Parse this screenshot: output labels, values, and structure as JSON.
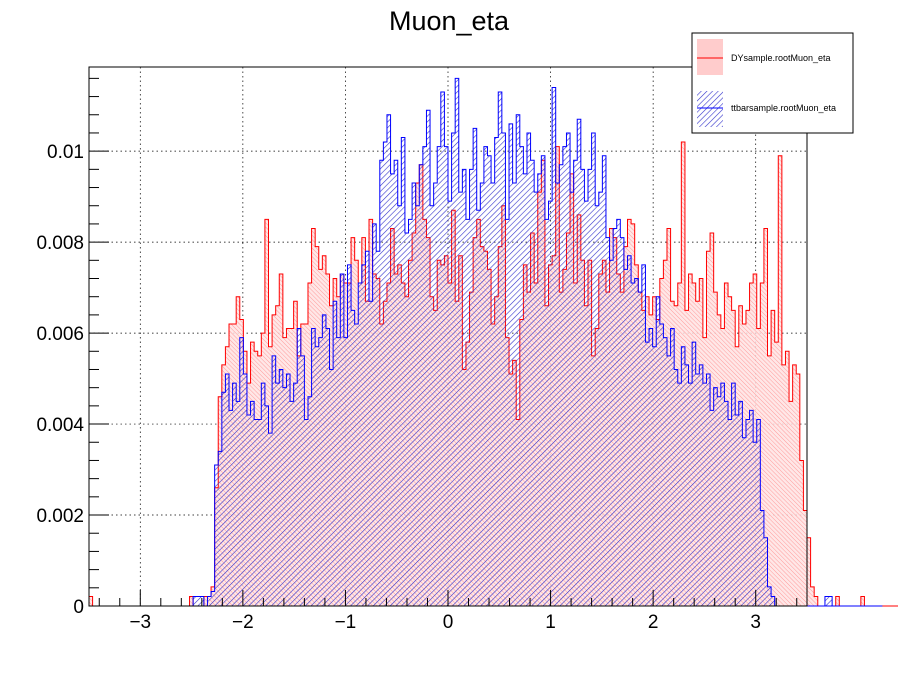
{
  "chart_data": {
    "type": "histogram",
    "title": "Muon_eta",
    "xlabel": "",
    "ylabel": "",
    "xlim": [
      -3.5,
      3.5
    ],
    "ylim": [
      0,
      0.01185
    ],
    "x_ticks": [
      -3,
      -2,
      -1,
      0,
      1,
      2,
      3
    ],
    "x_tick_labels": [
      "−3",
      "−2",
      "−1",
      "0",
      "1",
      "2",
      "3"
    ],
    "y_ticks": [
      0,
      0.002,
      0.004,
      0.006,
      0.008,
      0.01
    ],
    "y_tick_labels": [
      "0",
      "0.002",
      "0.004",
      "0.006",
      "0.008",
      "0.01"
    ],
    "grid": true,
    "legend_position": "top-right",
    "bin_width": 0.035,
    "bin_start": -3.5,
    "series": [
      {
        "name": "DYsample.rootMuon_eta",
        "color": "#ff0000",
        "fill": "#ffcccc",
        "values": [
          0.00021,
          0,
          0,
          0,
          0,
          0,
          0,
          0,
          0,
          0,
          0,
          0,
          0,
          0,
          0,
          0,
          0,
          0,
          0,
          0,
          0,
          0,
          0,
          0,
          0,
          0,
          0,
          0,
          0.00021,
          0,
          0,
          0,
          0.00021,
          0.00021,
          0.00042,
          0.0026,
          0.0046,
          0.0053,
          0.0057,
          0.0062,
          0.0062,
          0.0068,
          0.0063,
          0.0056,
          0.0049,
          0.0058,
          0.0056,
          0.0055,
          0.006,
          0.0085,
          0.0057,
          0.0064,
          0.0066,
          0.0073,
          0.0059,
          0.0061,
          0.0061,
          0.0067,
          0.0055,
          0.0062,
          0.0062,
          0.0071,
          0.0083,
          0.0079,
          0.0074,
          0.0077,
          0.0073,
          0.0066,
          0.0072,
          0.0068,
          0.0073,
          0.0071,
          0.0071,
          0.0081,
          0.0076,
          0.0071,
          0.0081,
          0.0067,
          0.0085,
          0.0073,
          0.0072,
          0.0062,
          0.0067,
          0.0071,
          0.0083,
          0.0073,
          0.0075,
          0.0071,
          0.0068,
          0.0076,
          0.0082,
          0.0093,
          0.0097,
          0.0085,
          0.0081,
          0.0068,
          0.0065,
          0.0076,
          0.0075,
          0.0077,
          0.0071,
          0.0087,
          0.0067,
          0.0077,
          0.0052,
          0.0058,
          0.0069,
          0.0081,
          0.0085,
          0.0079,
          0.0078,
          0.0074,
          0.0062,
          0.0068,
          0.0079,
          0.0088,
          0.0059,
          0.0051,
          0.0054,
          0.0041,
          0.0063,
          0.0075,
          0.0069,
          0.0082,
          0.0071,
          0.0091,
          0.0098,
          0.0066,
          0.0075,
          0.0077,
          0.0101,
          0.0069,
          0.0074,
          0.0082,
          0.0095,
          0.0071,
          0.0086,
          0.0076,
          0.0066,
          0.0076,
          0.0055,
          0.0061,
          0.0073,
          0.0076,
          0.0069,
          0.0083,
          0.0081,
          0.0073,
          0.0069,
          0.0079,
          0.0085,
          0.0084,
          0.0075,
          0.0069,
          0.0065,
          0.0068,
          0.0064,
          0.0068,
          0.0063,
          0.0072,
          0.0076,
          0.0083,
          0.0067,
          0.0066,
          0.0071,
          0.0102,
          0.0065,
          0.0073,
          0.0071,
          0.0067,
          0.0072,
          0.0059,
          0.0078,
          0.0082,
          0.0069,
          0.0064,
          0.0061,
          0.0071,
          0.0068,
          0.0065,
          0.0057,
          0.0066,
          0.0062,
          0.0065,
          0.0071,
          0.0073,
          0.0061,
          0.0071,
          0.0083,
          0.0055,
          0.0065,
          0.0058,
          0.0099,
          0.0053,
          0.0056,
          0.0045,
          0.0053,
          0.0051,
          0.0032,
          0.0021,
          0.0015,
          0.00042,
          0.00021,
          0,
          0,
          0,
          0,
          0,
          0.00021,
          0,
          0,
          0,
          0,
          0,
          0,
          0.00021,
          0,
          0,
          0,
          0,
          0,
          0,
          0,
          0,
          0,
          0,
          0,
          0.00021,
          0,
          0,
          0,
          0,
          0
        ]
      },
      {
        "name": "ttbarsample.rootMuon_eta",
        "color": "#0000ff",
        "fill": "#6666dd",
        "values": [
          0,
          0,
          0,
          0,
          0,
          0,
          0,
          0,
          0,
          0,
          0,
          0,
          0,
          0,
          0,
          0,
          0,
          0,
          0,
          0,
          0,
          0,
          0,
          0,
          0,
          0,
          0,
          0,
          0,
          0.00021,
          0.00021,
          0.00021,
          0,
          0.00021,
          0.00032,
          0.0031,
          0.0034,
          0.0047,
          0.0051,
          0.0043,
          0.0049,
          0.0045,
          0.0059,
          0.0051,
          0.0042,
          0.0045,
          0.0041,
          0.0041,
          0.0049,
          0.0044,
          0.0038,
          0.0055,
          0.0049,
          0.0052,
          0.0048,
          0.0051,
          0.0045,
          0.0049,
          0.0061,
          0.0055,
          0.0041,
          0.0046,
          0.0061,
          0.0057,
          0.0059,
          0.0064,
          0.0061,
          0.0052,
          0.0067,
          0.0059,
          0.0073,
          0.0059,
          0.0075,
          0.0065,
          0.0062,
          0.0071,
          0.0075,
          0.0078,
          0.0067,
          0.0084,
          0.0078,
          0.0098,
          0.0102,
          0.0108,
          0.0095,
          0.0098,
          0.0088,
          0.0103,
          0.0082,
          0.0085,
          0.0093,
          0.0088,
          0.0097,
          0.0101,
          0.0109,
          0.0088,
          0.0093,
          0.0101,
          0.0113,
          0.0101,
          0.0089,
          0.0104,
          0.0116,
          0.0091,
          0.0096,
          0.0085,
          0.0096,
          0.0105,
          0.0087,
          0.0093,
          0.0101,
          0.0099,
          0.0093,
          0.0103,
          0.0113,
          0.0104,
          0.0085,
          0.0106,
          0.0093,
          0.0108,
          0.0101,
          0.0095,
          0.0104,
          0.0098,
          0.0091,
          0.0095,
          0.0099,
          0.0085,
          0.0089,
          0.0114,
          0.0093,
          0.0097,
          0.0101,
          0.0104,
          0.0091,
          0.0098,
          0.0107,
          0.0096,
          0.0089,
          0.0096,
          0.0104,
          0.0088,
          0.0091,
          0.0099,
          0.0081,
          0.0076,
          0.0083,
          0.0085,
          0.0081,
          0.0074,
          0.0077,
          0.0071,
          0.0072,
          0.0069,
          0.0075,
          0.0058,
          0.0061,
          0.0057,
          0.0068,
          0.0062,
          0.0059,
          0.0055,
          0.0061,
          0.0052,
          0.0049,
          0.0057,
          0.0053,
          0.0049,
          0.0058,
          0.0051,
          0.0053,
          0.0049,
          0.0051,
          0.0043,
          0.0048,
          0.0046,
          0.0049,
          0.0045,
          0.0041,
          0.0049,
          0.0042,
          0.0045,
          0.0037,
          0.0041,
          0.0043,
          0.0036,
          0.0041,
          0.0021,
          0.0015,
          0.00042,
          0.00021,
          0,
          0,
          0,
          0,
          0,
          0,
          0,
          0,
          0,
          0,
          0,
          0,
          0,
          0,
          0.00021,
          0.00021,
          0,
          0,
          0,
          0,
          0,
          0,
          0,
          0,
          0,
          0,
          0,
          0,
          0,
          0
        ]
      }
    ]
  }
}
